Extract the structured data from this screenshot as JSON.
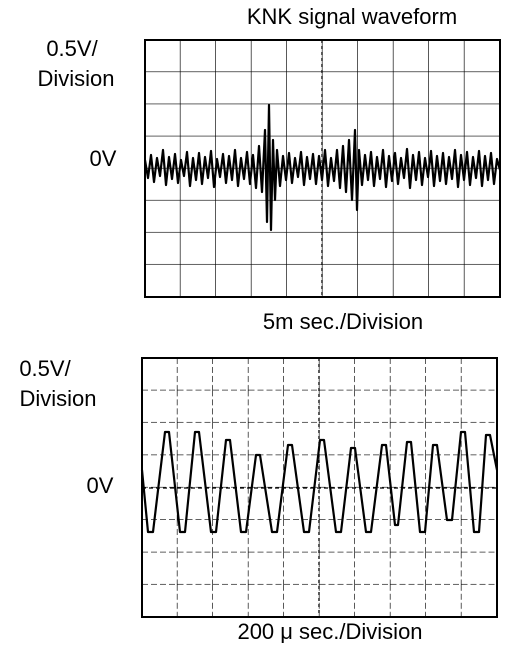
{
  "title": "KNK signal waveform",
  "top_scope": {
    "volts_per_division_line1": "0.5V/",
    "volts_per_division_line2": "Division",
    "zero_label": "0V",
    "time_per_division": "5m  sec./Division"
  },
  "bottom_scope": {
    "volts_per_division_line1": "0.5V/",
    "volts_per_division_line2": "Division",
    "zero_label": "0V",
    "time_per_division": "200 μ sec./Division"
  }
}
